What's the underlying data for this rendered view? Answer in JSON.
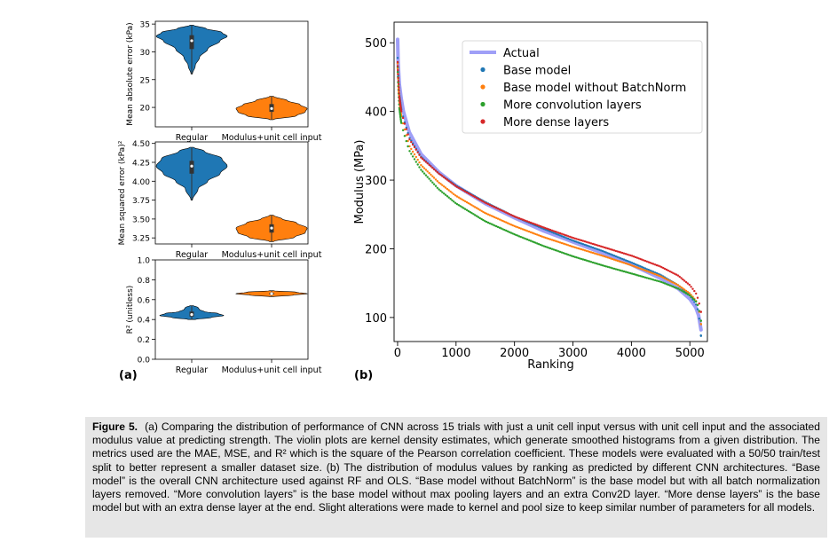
{
  "panel_labels": {
    "a": "(a)",
    "b": "(b)"
  },
  "caption": {
    "label": "Figure 5.",
    "text": "(a) Comparing the distribution of performance of CNN across 15 trials with just a unit cell input versus with unit cell input and the associated modulus value at predicting strength. The violin plots are kernel density estimates, which generate smoothed histograms from a given distribution. The metrics used are the MAE, MSE, and R² which is the square of the Pearson correlation coefficient. These models were evaluated with a 50/50 train/test split to better represent a smaller dataset size. (b) The distribution of modulus values by ranking as predicted by different CNN architectures. “Base model” is the overall CNN architecture used against RF and OLS. “Base model without BatchNorm” is the base model but with all batch normalization layers removed. “More convolution layers” is the base model without max pooling layers and an extra Conv2D layer. “More dense layers” is the base model but with an extra dense layer at the end. Slight alterations were made to kernel and pool size to keep similar number of parameters for all models."
  },
  "chart_data": [
    {
      "id": "mae",
      "type": "violin",
      "ylabel": "Mean absolute error (kPa)",
      "categories": [
        "Regular",
        "Modulus+unit cell input"
      ],
      "ylim": [
        16.5,
        35.5
      ],
      "yticks": [
        20,
        25,
        30,
        35
      ],
      "colors": [
        "#1f77b4",
        "#ff7f0e"
      ],
      "violins": [
        {
          "category": "Regular",
          "min": 26.0,
          "max": 34.8,
          "median": 32.0,
          "q1": 30.5,
          "q3": 33.0,
          "profile": [
            [
              26.0,
              0.02
            ],
            [
              27.5,
              0.1
            ],
            [
              29.0,
              0.22
            ],
            [
              30.5,
              0.45
            ],
            [
              32.0,
              0.8
            ],
            [
              32.8,
              1.0
            ],
            [
              33.5,
              0.85
            ],
            [
              34.2,
              0.4
            ],
            [
              34.8,
              0.05
            ]
          ]
        },
        {
          "category": "Modulus+unit cell input",
          "min": 17.8,
          "max": 22.0,
          "median": 19.8,
          "q1": 19.2,
          "q3": 20.6,
          "profile": [
            [
              17.8,
              0.05
            ],
            [
              18.5,
              0.7
            ],
            [
              19.2,
              0.95
            ],
            [
              19.8,
              1.0
            ],
            [
              20.5,
              0.8
            ],
            [
              21.2,
              0.45
            ],
            [
              22.0,
              0.05
            ]
          ]
        }
      ]
    },
    {
      "id": "mse",
      "type": "violin",
      "ylabel": "Mean squared error (kPa)²",
      "categories": [
        "Regular",
        "Modulus+unit cell input"
      ],
      "ylim": [
        3.17,
        4.52
      ],
      "yticks": [
        3.25,
        3.5,
        3.75,
        4.0,
        4.25,
        4.5
      ],
      "ytick_labels": [
        "3.25",
        "3.50",
        "3.75",
        "4.00",
        "4.25",
        "4.50"
      ],
      "colors": [
        "#1f77b4",
        "#ff7f0e"
      ],
      "violins": [
        {
          "category": "Regular",
          "min": 3.75,
          "max": 4.45,
          "median": 4.2,
          "q1": 4.1,
          "q3": 4.27,
          "profile": [
            [
              3.75,
              0.02
            ],
            [
              3.9,
              0.18
            ],
            [
              4.0,
              0.45
            ],
            [
              4.1,
              0.8
            ],
            [
              4.2,
              1.0
            ],
            [
              4.3,
              0.85
            ],
            [
              4.4,
              0.35
            ],
            [
              4.45,
              0.05
            ]
          ]
        },
        {
          "category": "Modulus+unit cell input",
          "min": 3.2,
          "max": 3.55,
          "median": 3.38,
          "q1": 3.32,
          "q3": 3.43,
          "profile": [
            [
              3.2,
              0.05
            ],
            [
              3.26,
              0.65
            ],
            [
              3.32,
              0.95
            ],
            [
              3.38,
              1.0
            ],
            [
              3.45,
              0.7
            ],
            [
              3.5,
              0.3
            ],
            [
              3.55,
              0.05
            ]
          ]
        }
      ]
    },
    {
      "id": "r2",
      "type": "violin",
      "ylabel": "R² (unitless)",
      "categories": [
        "Regular",
        "Modulus+unit cell input"
      ],
      "ylim": [
        0.0,
        1.0
      ],
      "yticks": [
        0.0,
        0.2,
        0.4,
        0.6,
        0.8,
        1.0
      ],
      "ytick_labels": [
        "0.0",
        "0.2",
        "0.4",
        "0.6",
        "0.8",
        "1.0"
      ],
      "colors": [
        "#1f77b4",
        "#ff7f0e"
      ],
      "violins": [
        {
          "category": "Regular",
          "min": 0.4,
          "max": 0.54,
          "median": 0.45,
          "q1": 0.43,
          "q3": 0.48,
          "profile": [
            [
              0.4,
              0.1
            ],
            [
              0.42,
              0.55
            ],
            [
              0.44,
              0.9
            ],
            [
              0.46,
              0.75
            ],
            [
              0.48,
              0.35
            ],
            [
              0.5,
              0.22
            ],
            [
              0.52,
              0.18
            ],
            [
              0.54,
              0.05
            ]
          ]
        },
        {
          "category": "Modulus+unit cell input",
          "min": 0.63,
          "max": 0.69,
          "median": 0.66,
          "q1": 0.65,
          "q3": 0.67,
          "profile": [
            [
              0.63,
              0.05
            ],
            [
              0.645,
              0.6
            ],
            [
              0.66,
              1.0
            ],
            [
              0.675,
              0.7
            ],
            [
              0.69,
              0.05
            ]
          ]
        }
      ]
    },
    {
      "id": "modulus",
      "type": "line",
      "xlabel": "Ranking",
      "ylabel": "Modulus (MPa)",
      "xlim": [
        -60,
        5300
      ],
      "ylim": [
        65,
        530
      ],
      "xticks": [
        0,
        1000,
        2000,
        3000,
        4000,
        5000
      ],
      "yticks": [
        100,
        200,
        300,
        400,
        500
      ],
      "legend_position": "top-right",
      "series": [
        {
          "name": "Actual",
          "color": "#9f9ff7",
          "style": "thick-line",
          "points": [
            [
              0,
              505
            ],
            [
              10,
              470
            ],
            [
              30,
              440
            ],
            [
              60,
              420
            ],
            [
              100,
              400
            ],
            [
              200,
              370
            ],
            [
              400,
              338
            ],
            [
              700,
              312
            ],
            [
              1000,
              292
            ],
            [
              1500,
              266
            ],
            [
              2000,
              245
            ],
            [
              2500,
              226
            ],
            [
              3000,
              210
            ],
            [
              3500,
              194
            ],
            [
              4000,
              177
            ],
            [
              4500,
              157
            ],
            [
              4800,
              142
            ],
            [
              5000,
              127
            ],
            [
              5100,
              115
            ],
            [
              5150,
              103
            ],
            [
              5190,
              82
            ]
          ]
        },
        {
          "name": "Base model",
          "color": "#1f77b4",
          "style": "dots",
          "points": [
            [
              0,
              478
            ],
            [
              10,
              455
            ],
            [
              30,
              425
            ],
            [
              60,
              405
            ],
            [
              100,
              390
            ],
            [
              200,
              362
            ],
            [
              400,
              334
            ],
            [
              700,
              310
            ],
            [
              1000,
              292
            ],
            [
              1500,
              268
            ],
            [
              2000,
              247
            ],
            [
              2500,
              229
            ],
            [
              3000,
              212
            ],
            [
              3500,
              197
            ],
            [
              4000,
              180
            ],
            [
              4500,
              162
            ],
            [
              4800,
              147
            ],
            [
              5000,
              132
            ],
            [
              5100,
              120
            ],
            [
              5150,
              108
            ],
            [
              5190,
              73
            ]
          ]
        },
        {
          "name": "Base model without BatchNorm",
          "color": "#ff7f0e",
          "style": "dots",
          "points": [
            [
              0,
              470
            ],
            [
              10,
              445
            ],
            [
              30,
              415
            ],
            [
              60,
              395
            ],
            [
              100,
              380
            ],
            [
              200,
              350
            ],
            [
              400,
              322
            ],
            [
              700,
              297
            ],
            [
              1000,
              277
            ],
            [
              1500,
              252
            ],
            [
              2000,
              233
            ],
            [
              2500,
              217
            ],
            [
              3000,
              203
            ],
            [
              3500,
              190
            ],
            [
              4000,
              176
            ],
            [
              4500,
              160
            ],
            [
              4800,
              147
            ],
            [
              5000,
              135
            ],
            [
              5100,
              125
            ],
            [
              5150,
              115
            ],
            [
              5190,
              90
            ]
          ]
        },
        {
          "name": "More convolution layers",
          "color": "#2ca02c",
          "style": "dots",
          "points": [
            [
              0,
              465
            ],
            [
              10,
              440
            ],
            [
              30,
              405
            ],
            [
              60,
              385
            ],
            [
              100,
              370
            ],
            [
              200,
              343
            ],
            [
              400,
              315
            ],
            [
              700,
              287
            ],
            [
              1000,
              266
            ],
            [
              1500,
              240
            ],
            [
              2000,
              221
            ],
            [
              2500,
              204
            ],
            [
              3000,
              189
            ],
            [
              3500,
              176
            ],
            [
              4000,
              164
            ],
            [
              4500,
              152
            ],
            [
              4800,
              142
            ],
            [
              5000,
              132
            ],
            [
              5100,
              124
            ],
            [
              5150,
              115
            ],
            [
              5190,
              95
            ]
          ]
        },
        {
          "name": "More dense layers",
          "color": "#d62728",
          "style": "dots",
          "points": [
            [
              0,
              472
            ],
            [
              10,
              452
            ],
            [
              30,
              422
            ],
            [
              60,
              402
            ],
            [
              100,
              388
            ],
            [
              200,
              360
            ],
            [
              400,
              333
            ],
            [
              700,
              310
            ],
            [
              1000,
              291
            ],
            [
              1500,
              267
            ],
            [
              2000,
              247
            ],
            [
              2500,
              231
            ],
            [
              3000,
              216
            ],
            [
              3500,
              203
            ],
            [
              4000,
              190
            ],
            [
              4500,
              174
            ],
            [
              4800,
              161
            ],
            [
              5000,
              147
            ],
            [
              5100,
              136
            ],
            [
              5150,
              125
            ],
            [
              5190,
              108
            ]
          ]
        }
      ]
    }
  ]
}
